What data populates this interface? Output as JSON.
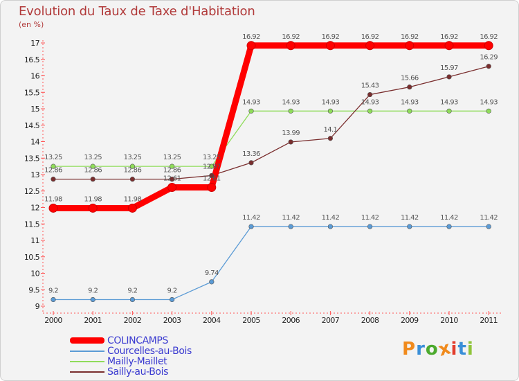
{
  "chart_data": {
    "type": "line",
    "title": "Evolution du Taux de Taxe d'Habitation",
    "ylabel": "(en %)",
    "xlabel": "",
    "ylim": [
      9,
      17
    ],
    "yticks": [
      "9",
      "9.5",
      "10",
      "10.5",
      "11",
      "11.5",
      "12",
      "12.5",
      "13",
      "13.5",
      "14",
      "14.5",
      "15",
      "15.5",
      "16",
      "16.5",
      "17"
    ],
    "categories": [
      "2000",
      "2001",
      "2002",
      "2003",
      "2004",
      "2005",
      "2006",
      "2007",
      "2008",
      "2009",
      "2010",
      "2011"
    ],
    "series": [
      {
        "name": "COLINCAMPS",
        "color": "#ff0000",
        "style": "thick",
        "values": [
          11.98,
          11.98,
          11.98,
          12.61,
          12.61,
          16.92,
          16.92,
          16.92,
          16.92,
          16.92,
          16.92,
          16.92
        ],
        "labels": [
          "11.98",
          "11.98",
          "11.98",
          "12.61",
          "12.61",
          "16.92",
          "16.92",
          "16.92",
          "16.92",
          "16.92",
          "16.92",
          "16.92"
        ]
      },
      {
        "name": "Courcelles-au-Bois",
        "color": "#5b9bd5",
        "style": "thin",
        "values": [
          9.2,
          9.2,
          9.2,
          9.2,
          9.74,
          11.42,
          11.42,
          11.42,
          11.42,
          11.42,
          11.42,
          11.42
        ],
        "labels": [
          "9.2",
          "9.2",
          "9.2",
          "9.2",
          "9.74",
          "11.42",
          "11.42",
          "11.42",
          "11.42",
          "11.42",
          "11.42",
          "11.42"
        ]
      },
      {
        "name": "Mailly-Maillet",
        "color": "#8fdc5a",
        "style": "thin",
        "values": [
          13.25,
          13.25,
          13.25,
          13.25,
          13.25,
          14.93,
          14.93,
          14.93,
          14.93,
          14.93,
          14.93,
          14.93
        ],
        "labels": [
          "13.25",
          "13.25",
          "13.25",
          "13.25",
          "13.25",
          "14.93",
          "14.93",
          "14.93",
          "14.93",
          "14.93",
          "14.93",
          "14.93"
        ]
      },
      {
        "name": "Sailly-au-Bois",
        "color": "#7a2e2e",
        "style": "thin",
        "values": [
          12.86,
          12.86,
          12.86,
          12.86,
          12.97,
          13.36,
          13.99,
          14.1,
          15.43,
          15.66,
          15.97,
          16.29
        ],
        "labels": [
          "12.86",
          "12.86",
          "12.86",
          "12.86",
          "12.97",
          "13.36",
          "13.99",
          "14.1",
          "15.43",
          "15.66",
          "15.97",
          "16.29"
        ]
      }
    ],
    "legend_position": "bottom-left"
  },
  "branding": {
    "logo_text": "Proxiti",
    "logo_colors": [
      "#f08a1c",
      "#3a8fd8",
      "#4caa2e",
      "#f08a1c",
      "#e23c2c",
      "#3a8fd8",
      "#8fc43a"
    ]
  }
}
